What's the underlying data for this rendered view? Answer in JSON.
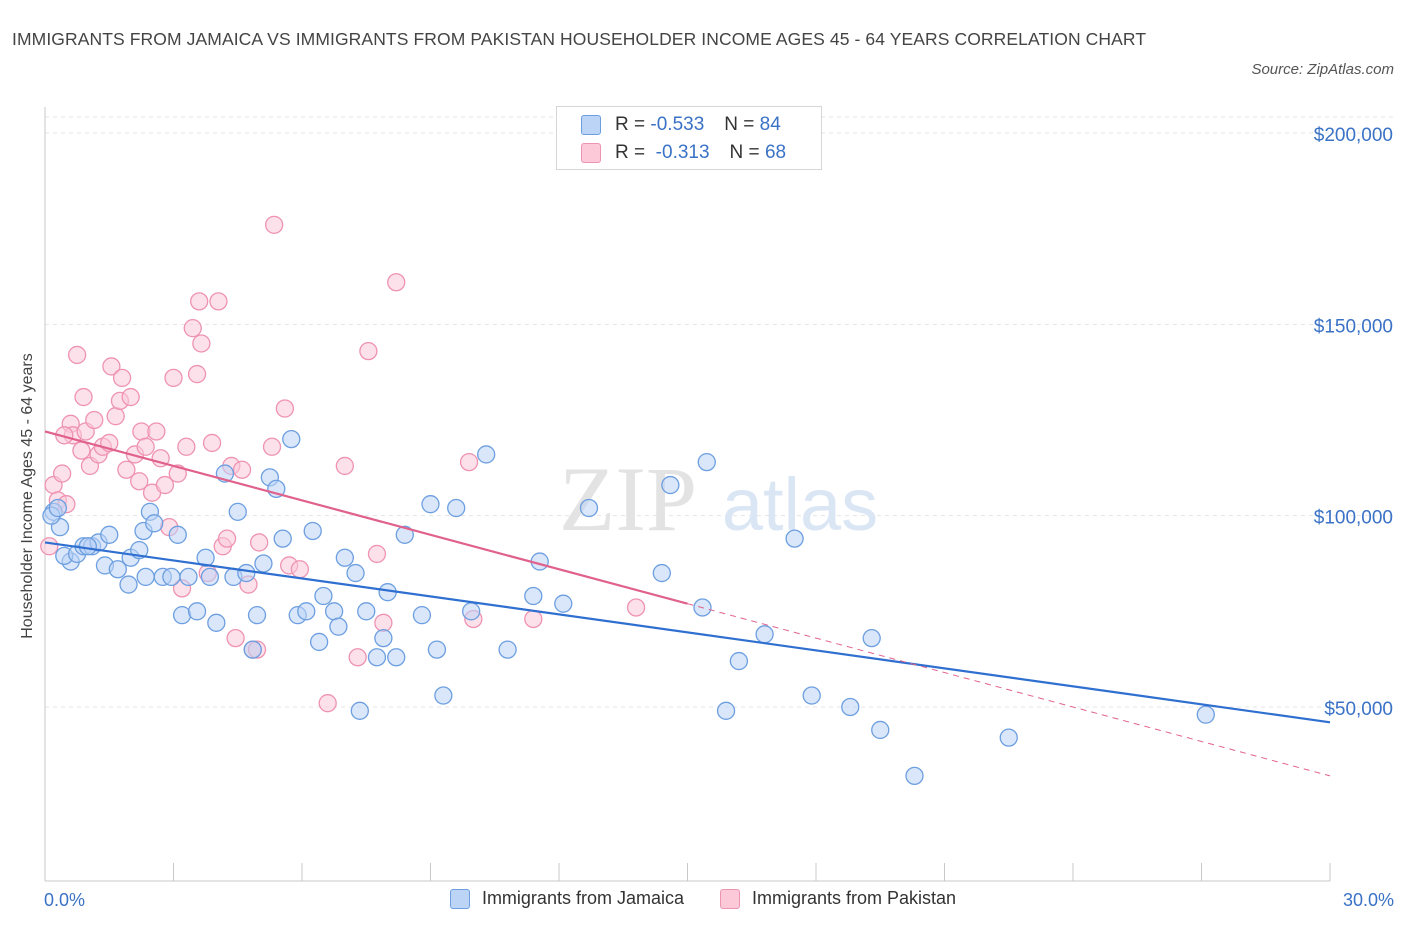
{
  "title": "IMMIGRANTS FROM JAMAICA VS IMMIGRANTS FROM PAKISTAN HOUSEHOLDER INCOME AGES 45 - 64 YEARS CORRELATION CHART",
  "source": "Source: ZipAtlas.com",
  "watermark": {
    "zip": "ZIP",
    "atlas": "atlas"
  },
  "colors": {
    "jamaica_fill": "#bcd4f5",
    "jamaica_stroke": "#6d9fe0",
    "jamaica_line": "#2f6fd0",
    "pakistan_fill": "#fbc9d8",
    "pakistan_stroke": "#ee93b1",
    "pakistan_line": "#e0628c",
    "axis_label": "#3a72c6"
  },
  "legend": {
    "r_label": "R =",
    "n_label": "N =",
    "rows": [
      {
        "r": "-0.533",
        "n": "84",
        "color": "#bcd4f5"
      },
      {
        "r": "-0.313",
        "n": "68",
        "color": "#fbc9d8"
      }
    ]
  },
  "chart_data": {
    "type": "scatter",
    "title": "IMMIGRANTS FROM JAMAICA VS IMMIGRANTS FROM PAKISTAN HOUSEHOLDER INCOME AGES 45 - 64 YEARS CORRELATION CHART",
    "xlabel": "",
    "ylabel": "Householder Income Ages 45 - 64 years",
    "xlim": [
      0,
      30
    ],
    "ylim": [
      0,
      200000
    ],
    "x_tick_labels": [
      "0.0%",
      "30.0%"
    ],
    "y_ticks": [
      {
        "value": 50000,
        "label": "$50,000"
      },
      {
        "value": 100000,
        "label": "$100,000"
      },
      {
        "value": 150000,
        "label": "$150,000"
      },
      {
        "value": 200000,
        "label": "$200,000"
      }
    ],
    "grid": true,
    "legend_position": "top-center",
    "series": [
      {
        "name": "Immigrants from Jamaica",
        "color": "#bcd4f5",
        "trend": {
          "x": [
            0,
            30
          ],
          "y": [
            93000,
            46000
          ],
          "dashed_extension": false
        },
        "points": [
          [
            0.2,
            101000
          ],
          [
            0.35,
            97000
          ],
          [
            0.6,
            88000
          ],
          [
            0.45,
            89500
          ],
          [
            0.75,
            90000
          ],
          [
            0.9,
            92000
          ],
          [
            1.1,
            92000
          ],
          [
            1.25,
            93000
          ],
          [
            1.5,
            95000
          ],
          [
            1.4,
            87000
          ],
          [
            1.7,
            86000
          ],
          [
            1.95,
            82000
          ],
          [
            2.0,
            89000
          ],
          [
            2.2,
            91000
          ],
          [
            2.3,
            96000
          ],
          [
            2.45,
            101000
          ],
          [
            2.55,
            98000
          ],
          [
            2.75,
            84000
          ],
          [
            2.95,
            84000
          ],
          [
            3.1,
            95000
          ],
          [
            3.2,
            74000
          ],
          [
            3.35,
            84000
          ],
          [
            3.55,
            75000
          ],
          [
            3.75,
            89000
          ],
          [
            3.85,
            84000
          ],
          [
            4.0,
            72000
          ],
          [
            4.2,
            111000
          ],
          [
            4.4,
            84000
          ],
          [
            4.5,
            101000
          ],
          [
            4.7,
            85000
          ],
          [
            4.85,
            65000
          ],
          [
            4.95,
            74000
          ],
          [
            5.1,
            87500
          ],
          [
            5.25,
            110000
          ],
          [
            5.4,
            107000
          ],
          [
            5.55,
            94000
          ],
          [
            5.75,
            120000
          ],
          [
            5.9,
            74000
          ],
          [
            6.1,
            75000
          ],
          [
            6.25,
            96000
          ],
          [
            6.4,
            67000
          ],
          [
            6.5,
            79000
          ],
          [
            6.75,
            75000
          ],
          [
            6.85,
            71000
          ],
          [
            7.0,
            89000
          ],
          [
            7.25,
            85000
          ],
          [
            7.5,
            75000
          ],
          [
            7.75,
            63000
          ],
          [
            7.9,
            68000
          ],
          [
            8.0,
            80000
          ],
          [
            8.2,
            63000
          ],
          [
            8.4,
            95000
          ],
          [
            7.35,
            49000
          ],
          [
            8.8,
            74000
          ],
          [
            9.0,
            103000
          ],
          [
            9.15,
            65000
          ],
          [
            9.3,
            53000
          ],
          [
            9.6,
            102000
          ],
          [
            9.95,
            75000
          ],
          [
            10.3,
            116000
          ],
          [
            10.8,
            65000
          ],
          [
            11.4,
            79000
          ],
          [
            11.55,
            88000
          ],
          [
            12.1,
            77000
          ],
          [
            12.7,
            102000
          ],
          [
            14.4,
            85000
          ],
          [
            14.6,
            108000
          ],
          [
            15.35,
            76000
          ],
          [
            15.45,
            114000
          ],
          [
            15.9,
            49000
          ],
          [
            16.2,
            62000
          ],
          [
            16.8,
            69000
          ],
          [
            17.5,
            94000
          ],
          [
            17.9,
            53000
          ],
          [
            18.8,
            50000
          ],
          [
            19.3,
            68000
          ],
          [
            19.5,
            44000
          ],
          [
            20.3,
            32000
          ],
          [
            22.5,
            42000
          ],
          [
            27.1,
            48000
          ],
          [
            0.15,
            100000
          ],
          [
            0.3,
            102000
          ],
          [
            1.0,
            92000
          ],
          [
            2.35,
            84000
          ]
        ]
      },
      {
        "name": "Immigrants from Pakistan",
        "color": "#fbc9d8",
        "trend": {
          "x": [
            0,
            15.0
          ],
          "y": [
            122000,
            77000
          ],
          "dashed_extension": {
            "x": [
              15.0,
              30
            ],
            "y": [
              77000,
              32000
            ]
          }
        },
        "points": [
          [
            0.1,
            92000
          ],
          [
            0.2,
            108000
          ],
          [
            0.3,
            104000
          ],
          [
            0.4,
            111000
          ],
          [
            0.5,
            103000
          ],
          [
            0.6,
            124000
          ],
          [
            0.65,
            121000
          ],
          [
            0.75,
            142000
          ],
          [
            0.85,
            117000
          ],
          [
            0.9,
            131000
          ],
          [
            0.95,
            122000
          ],
          [
            1.05,
            113000
          ],
          [
            1.15,
            125000
          ],
          [
            1.25,
            116000
          ],
          [
            1.35,
            118000
          ],
          [
            1.5,
            119000
          ],
          [
            1.55,
            139000
          ],
          [
            1.65,
            126000
          ],
          [
            1.75,
            130000
          ],
          [
            1.8,
            136000
          ],
          [
            1.9,
            112000
          ],
          [
            2.0,
            131000
          ],
          [
            2.1,
            116000
          ],
          [
            2.2,
            109000
          ],
          [
            2.25,
            122000
          ],
          [
            2.35,
            118000
          ],
          [
            2.5,
            106000
          ],
          [
            2.6,
            122000
          ],
          [
            2.7,
            115000
          ],
          [
            2.8,
            108000
          ],
          [
            2.9,
            97000
          ],
          [
            3.0,
            136000
          ],
          [
            3.1,
            111000
          ],
          [
            3.2,
            81000
          ],
          [
            3.3,
            118000
          ],
          [
            3.45,
            149000
          ],
          [
            3.55,
            137000
          ],
          [
            3.6,
            156000
          ],
          [
            3.65,
            145000
          ],
          [
            3.8,
            85000
          ],
          [
            3.9,
            119000
          ],
          [
            4.05,
            156000
          ],
          [
            4.15,
            92000
          ],
          [
            4.25,
            94000
          ],
          [
            4.35,
            113000
          ],
          [
            4.45,
            68000
          ],
          [
            4.6,
            112000
          ],
          [
            4.75,
            82000
          ],
          [
            4.85,
            65000
          ],
          [
            4.95,
            65000
          ],
          [
            5.0,
            93000
          ],
          [
            5.3,
            118000
          ],
          [
            5.35,
            176000
          ],
          [
            5.6,
            128000
          ],
          [
            5.7,
            87000
          ],
          [
            5.95,
            86000
          ],
          [
            6.6,
            51000
          ],
          [
            7.0,
            113000
          ],
          [
            7.3,
            63000
          ],
          [
            7.55,
            143000
          ],
          [
            7.75,
            90000
          ],
          [
            7.9,
            72000
          ],
          [
            8.2,
            161000
          ],
          [
            9.9,
            114000
          ],
          [
            10.0,
            73000
          ],
          [
            11.4,
            73000
          ],
          [
            13.8,
            76000
          ],
          [
            0.45,
            121000
          ]
        ]
      }
    ]
  }
}
